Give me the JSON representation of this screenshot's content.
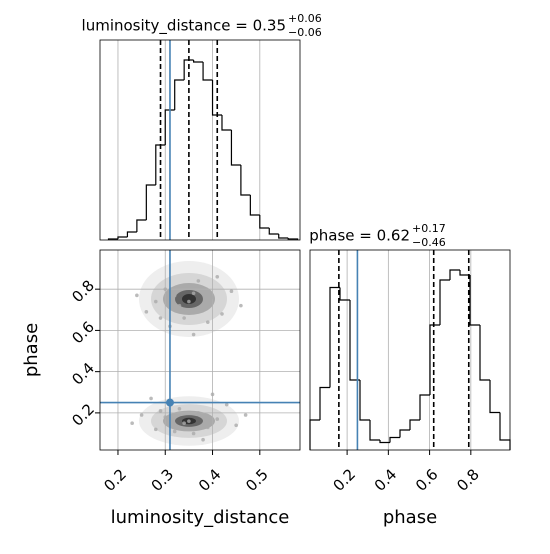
{
  "chart_data": [
    {
      "type": "histogram",
      "title": "luminosity_distance = 0.35",
      "title_sup": "+0.06",
      "title_sub": "−0.06",
      "bins": [
        0.18,
        0.2,
        0.22,
        0.24,
        0.26,
        0.28,
        0.3,
        0.32,
        0.34,
        0.36,
        0.38,
        0.4,
        0.42,
        0.44,
        0.46,
        0.48,
        0.5,
        0.52,
        0.54,
        0.56,
        0.58
      ],
      "values": [
        1,
        3,
        8,
        20,
        55,
        95,
        130,
        160,
        180,
        178,
        160,
        125,
        110,
        75,
        45,
        25,
        12,
        6,
        2,
        1
      ],
      "xlim": [
        0.162,
        0.585
      ],
      "ylim": [
        0,
        200
      ],
      "xticks": [
        0.2,
        0.3,
        0.4,
        0.5
      ],
      "quantiles": [
        0.29,
        0.35,
        0.41
      ],
      "truth": 0.31,
      "color": "#000000",
      "truth_color": "#4682b4",
      "grid": true
    },
    {
      "type": "scatter",
      "xlabel": "luminosity_distance",
      "ylabel": "phase",
      "x": [
        0.3,
        0.33,
        0.36,
        0.38,
        0.34,
        0.28,
        0.4,
        0.42,
        0.31,
        0.37,
        0.26,
        0.44,
        0.35,
        0.32,
        0.39,
        0.29,
        0.46,
        0.24,
        0.36,
        0.41,
        0.3,
        0.34,
        0.37,
        0.39,
        0.33,
        0.28,
        0.41,
        0.43,
        0.31,
        0.36,
        0.25,
        0.45,
        0.35,
        0.32,
        0.4,
        0.29,
        0.47,
        0.23,
        0.38,
        0.27
      ],
      "y": [
        0.8,
        0.72,
        0.78,
        0.7,
        0.66,
        0.74,
        0.76,
        0.68,
        0.62,
        0.84,
        0.69,
        0.79,
        0.74,
        0.77,
        0.64,
        0.66,
        0.72,
        0.77,
        0.58,
        0.86,
        0.18,
        0.15,
        0.2,
        0.13,
        0.22,
        0.12,
        0.17,
        0.24,
        0.26,
        0.1,
        0.19,
        0.14,
        0.16,
        0.11,
        0.29,
        0.21,
        0.19,
        0.15,
        0.07,
        0.27
      ],
      "xlim": [
        0.162,
        0.585
      ],
      "ylim": [
        0.02,
        0.99
      ],
      "xticks": [
        0.2,
        0.3,
        0.4,
        0.5
      ],
      "yticks": [
        0.2,
        0.4,
        0.6,
        0.8
      ],
      "truth": [
        0.31,
        0.25
      ],
      "color": "#aaaaaa",
      "truth_color": "#4682b4",
      "grid": true
    },
    {
      "type": "histogram",
      "title": "phase = 0.62",
      "title_sup": "+0.17",
      "title_sub": "−0.46",
      "xlabel": "phase",
      "bins": [
        0.02,
        0.0685,
        0.117,
        0.1655,
        0.214,
        0.2625,
        0.311,
        0.3595,
        0.408,
        0.4565,
        0.505,
        0.5535,
        0.602,
        0.6505,
        0.699,
        0.7475,
        0.796,
        0.8445,
        0.893,
        0.9415,
        0.99
      ],
      "values": [
        12,
        25,
        65,
        60,
        28,
        12,
        4,
        3,
        5,
        8,
        12,
        22,
        50,
        68,
        72,
        70,
        50,
        28,
        15,
        4
      ],
      "xlim": [
        0.02,
        0.99
      ],
      "ylim": [
        0,
        80
      ],
      "xticks": [
        0.2,
        0.4,
        0.6,
        0.8
      ],
      "quantiles": [
        0.16,
        0.62,
        0.79
      ],
      "truth": 0.25,
      "color": "#000000",
      "truth_color": "#4682b4",
      "grid": true
    }
  ]
}
